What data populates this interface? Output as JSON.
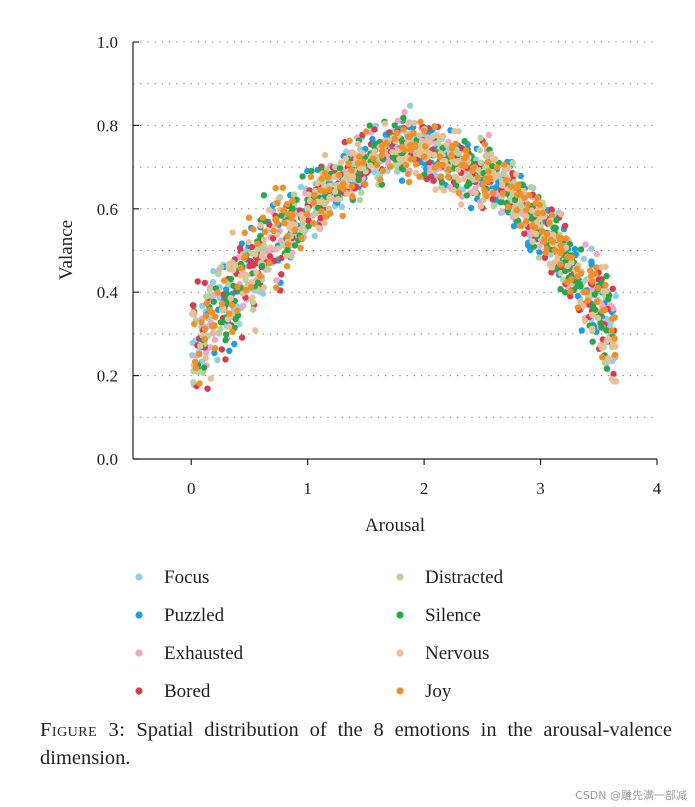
{
  "chart_data": {
    "type": "scatter",
    "title": "",
    "xlabel": "Arousal",
    "ylabel": "Valance",
    "xlim": [
      -0.5,
      4
    ],
    "ylim": [
      0,
      1
    ],
    "x_ticks": [
      "0",
      "1",
      "2",
      "3",
      "4"
    ],
    "y_ticks": [
      "0.0",
      "0.2",
      "0.4",
      "0.6",
      "0.8",
      "1.0"
    ],
    "grid": "dotted horizontal",
    "trend": "inverted-U: valence rises from about 0.2-0.3 at arousal 0 to about 0.75 near arousal 2, then falls to about 0.3 at arousal 3.6",
    "x_range_of_points": [
      0,
      3.65
    ],
    "legend_position": "below",
    "series": [
      {
        "name": "Focus",
        "color": "#8fd0e8"
      },
      {
        "name": "Puzzled",
        "color": "#1c9fe0"
      },
      {
        "name": "Exhausted",
        "color": "#f0a6c8"
      },
      {
        "name": "Bored",
        "color": "#d83a52"
      },
      {
        "name": "Distracted",
        "color": "#b5d39a"
      },
      {
        "name": "Silence",
        "color": "#2aa64a"
      },
      {
        "name": "Nervous",
        "color": "#e9bf95"
      },
      {
        "name": "Joy",
        "color": "#f0902a"
      }
    ]
  },
  "caption": {
    "label": "Figure 3:",
    "text": "Spatial distribution of the 8 emotions in the arousal-valence dimension."
  },
  "watermark": "CSDN @雕先满一部减"
}
